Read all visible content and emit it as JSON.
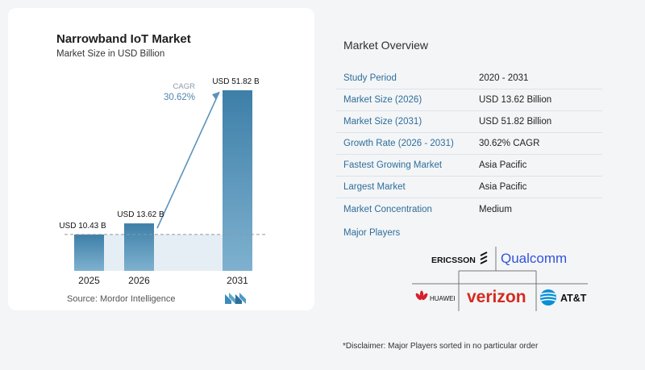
{
  "chart": {
    "title": "Narrowband IoT Market",
    "subtitle": "Market Size in USD Billion",
    "source": "Source:  Mordor Intelligence",
    "cagr_label": "CAGR",
    "cagr_value": "30.62%",
    "colors": {
      "bar_light": "#7fb1cf",
      "bar_dark": "#3d7fa8",
      "shade": "#e6eef5",
      "arrow": "#5b93bd"
    }
  },
  "chart_data": {
    "type": "bar",
    "categories": [
      "2025",
      "2026",
      "2031"
    ],
    "values": [
      10.43,
      13.62,
      51.82
    ],
    "data_labels": [
      "USD 10.43 B",
      "USD 13.62 B",
      "USD 51.82 B"
    ],
    "title": "Narrowband IoT Market",
    "subtitle": "Market Size in USD Billion",
    "xlabel": "",
    "ylabel": "",
    "ylim": [
      0,
      55
    ],
    "annotations": [
      "CAGR",
      "30.62%"
    ]
  },
  "overview": {
    "title": "Market Overview",
    "rows": [
      {
        "key": "Study Period",
        "value": "2020 - 2031"
      },
      {
        "key": "Market Size (2026)",
        "value": "USD 13.62 Billion"
      },
      {
        "key": "Market Size (2031)",
        "value": "USD 51.82 Billion"
      },
      {
        "key": "Growth Rate (2026 - 2031)",
        "value": "30.62% CAGR"
      },
      {
        "key": "Fastest Growing Market",
        "value": "Asia Pacific"
      },
      {
        "key": "Largest Market",
        "value": "Asia Pacific"
      },
      {
        "key": "Market Concentration",
        "value": "Medium"
      }
    ],
    "players_title": "Major Players",
    "players": [
      "ERICSSON",
      "Qualcomm",
      "HUAWEI",
      "verizon",
      "AT&T"
    ],
    "disclaimer": "*Disclaimer: Major Players sorted in no particular order"
  }
}
